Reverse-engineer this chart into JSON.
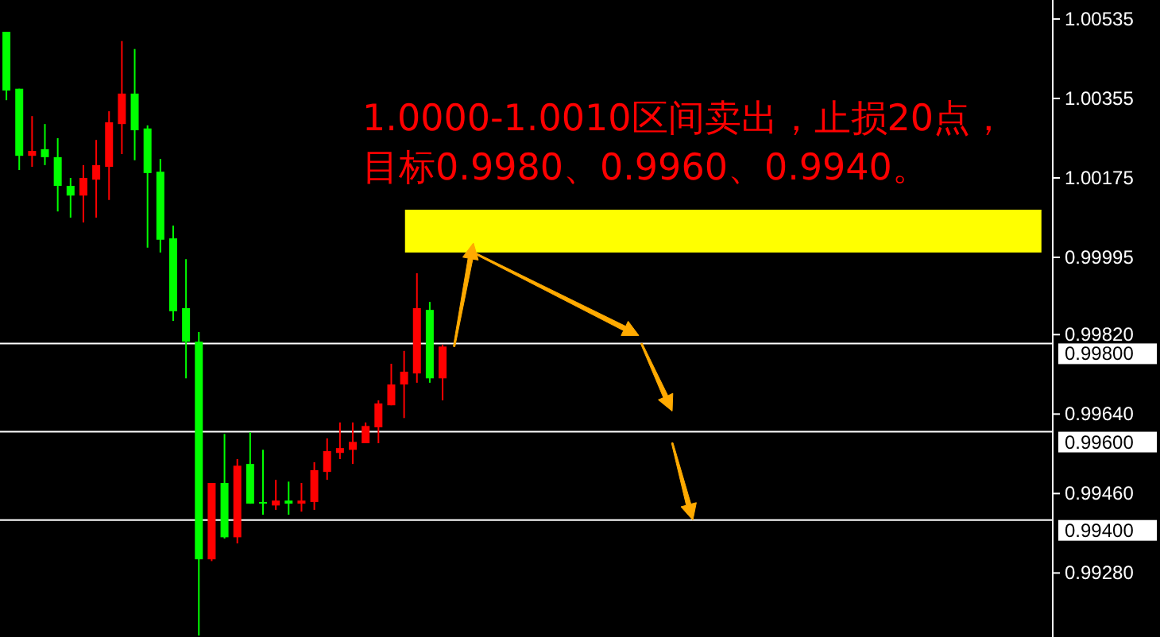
{
  "chart_data": {
    "type": "candlestick",
    "categories": [
      null,
      null,
      null,
      null,
      null,
      null,
      null,
      null,
      null,
      null,
      null,
      null,
      null,
      null,
      null,
      null,
      null,
      null,
      null,
      null,
      null,
      null,
      null,
      null,
      null,
      null,
      null,
      null,
      null,
      null,
      null,
      null,
      null,
      null,
      null,
      null,
      null,
      null,
      null,
      null,
      null,
      null,
      null,
      null,
      null,
      null,
      null,
      null,
      null,
      null,
      null,
      null,
      null,
      null,
      null,
      null,
      null,
      null,
      null,
      null,
      null,
      null,
      null,
      null,
      null,
      null,
      null,
      null,
      null,
      null,
      null,
      null,
      null,
      null,
      null,
      null,
      null,
      null,
      null,
      null,
      null,
      null
    ],
    "ohlc": [
      [
        1.00506,
        1.00506,
        1.00351,
        1.00373
      ],
      [
        1.00377,
        1.00377,
        1.00193,
        1.00225
      ],
      [
        1.00225,
        1.00315,
        1.002,
        1.00236
      ],
      [
        1.0024,
        1.00297,
        1.00204,
        1.00222
      ],
      [
        1.00222,
        1.00265,
        1.00099,
        1.00157
      ],
      [
        1.00157,
        1.00175,
        1.00085,
        1.00135
      ],
      [
        1.00135,
        1.00204,
        1.00074,
        1.00175
      ],
      [
        1.00171,
        1.00261,
        1.00085,
        1.00204
      ],
      [
        1.002,
        1.00326,
        1.00125,
        1.00301
      ],
      [
        1.00297,
        1.00485,
        1.00229,
        1.00366
      ],
      [
        1.00366,
        1.00467,
        1.00215,
        1.00283
      ],
      [
        1.00287,
        1.00294,
        1.00017,
        1.00186
      ],
      [
        1.00189,
        1.00218,
        1.00006,
        1.00035
      ],
      [
        1.00038,
        1.00067,
        0.99851,
        0.99873
      ],
      [
        0.9988,
        0.99991,
        0.99721,
        0.99804
      ],
      [
        0.99804,
        0.99826,
        0.99138,
        0.99311
      ],
      [
        0.99311,
        0.99484,
        0.99307,
        0.99484
      ],
      [
        0.99484,
        0.99595,
        0.99358,
        0.99361
      ],
      [
        0.99361,
        0.99538,
        0.99347,
        0.99523
      ],
      [
        0.99527,
        0.99599,
        0.99437,
        0.99437
      ],
      [
        0.99441,
        0.99559,
        0.99412,
        0.99437
      ],
      [
        0.99433,
        0.99491,
        0.99423,
        0.99444
      ],
      [
        0.99444,
        0.99487,
        0.99412,
        0.99437
      ],
      [
        0.99437,
        0.99484,
        0.99419,
        0.99444
      ],
      [
        0.99441,
        0.99531,
        0.99423,
        0.99513
      ],
      [
        0.99509,
        0.99585,
        0.99491,
        0.99556
      ],
      [
        0.99552,
        0.99621,
        0.99538,
        0.99563
      ],
      [
        0.99559,
        0.99621,
        0.99527,
        0.99577
      ],
      [
        0.99574,
        0.99621,
        0.99574,
        0.99613
      ],
      [
        0.9961,
        0.99671,
        0.99574,
        0.99664
      ],
      [
        0.9966,
        0.99754,
        0.9966,
        0.99707
      ],
      [
        0.99707,
        0.99783,
        0.99631,
        0.99736
      ],
      [
        0.99732,
        0.99959,
        0.99711,
        0.9988
      ],
      [
        0.99876,
        0.99894,
        0.99711,
        0.99721
      ],
      [
        0.99721,
        0.99797,
        0.99671,
        0.99793
      ],
      null,
      null,
      null,
      null,
      null,
      null,
      null,
      null,
      null,
      null,
      null,
      null,
      null,
      null,
      null,
      null,
      null,
      null,
      null,
      null,
      null,
      null,
      null,
      null,
      null,
      null,
      null,
      null,
      null,
      null,
      null,
      null,
      null,
      null,
      null,
      null,
      null,
      null,
      null,
      null,
      null,
      null,
      null,
      null,
      null,
      null,
      null
    ],
    "colors": [
      "#00ff00",
      "#00ff00",
      "#ff0000",
      "#00ff00",
      "#00ff00",
      "#00ff00",
      "#ff0000",
      "#ff0000",
      "#ff0000",
      "#ff0000",
      "#00ff00",
      "#00ff00",
      "#00ff00",
      "#00ff00",
      "#00ff00",
      "#00ff00",
      "#ff0000",
      "#00ff00",
      "#ff0000",
      "#00ff00",
      "#00ff00",
      "#ff0000",
      "#00ff00",
      "#ff0000",
      "#ff0000",
      "#ff0000",
      "#ff0000",
      "#ff0000",
      "#ff0000",
      "#ff0000",
      "#ff0000",
      "#ff0000",
      "#ff0000",
      "#00ff00",
      "#ff0000",
      null,
      null,
      null,
      null,
      null,
      null,
      null,
      null,
      null,
      null,
      null,
      null,
      null,
      null,
      null,
      null,
      null,
      null,
      null,
      null,
      null,
      null,
      null,
      null,
      null,
      null,
      null,
      null,
      null,
      null,
      null,
      null,
      null,
      null,
      null,
      null,
      null,
      null,
      null,
      null,
      null,
      null,
      null,
      null,
      null,
      null,
      null
    ],
    "ylim": [
      0.99135,
      1.00578
    ],
    "yticks": [
      {
        "value": 1.00535,
        "label": "1.00535"
      },
      {
        "value": 1.00355,
        "label": "1.00355"
      },
      {
        "value": 1.00175,
        "label": "1.00175"
      },
      {
        "value": 0.99995,
        "label": "0.99995"
      },
      {
        "value": 0.9982,
        "label": "0.99820"
      },
      {
        "value": 0.9964,
        "label": "0.99640"
      },
      {
        "value": 0.9946,
        "label": "0.99460"
      },
      {
        "value": 0.9928,
        "label": "0.99280"
      }
    ],
    "tick_labels": "y",
    "ref_lines": [
      {
        "axis": "y",
        "value": 0.998,
        "label": "0.99800",
        "color": "#ffffff"
      },
      {
        "axis": "y",
        "value": 0.996,
        "label": "0.99600",
        "color": "#ffffff"
      },
      {
        "axis": "y",
        "value": 0.994,
        "label": "0.99400",
        "color": "#ffffff"
      }
    ],
    "bands": [
      {
        "axis": "y",
        "from": 1.00006,
        "to": 1.00103,
        "color": "#ffff00"
      }
    ],
    "annotations": [
      "1.0000-1.0010区间卖出，止损20点，",
      "目标0.9980、0.9960、0.9940。"
    ]
  }
}
